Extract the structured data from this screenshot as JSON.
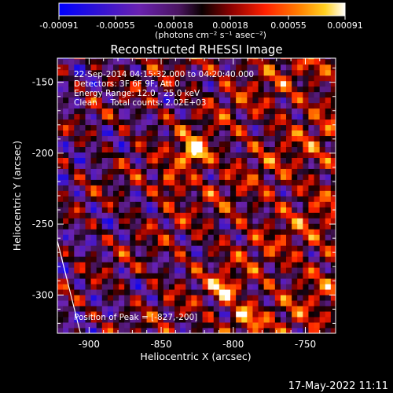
{
  "colorbar": {
    "ticks": [
      "-0.00091",
      "-0.00055",
      "-0.00018",
      "0.00018",
      "0.00055",
      "0.00091"
    ],
    "tick_values": [
      -0.00091,
      -0.00055,
      -0.00018,
      0.00018,
      0.00055,
      0.00091
    ],
    "units_label": "(photons cm⁻² s⁻¹ asec⁻²)"
  },
  "chart_data": {
    "type": "heatmap",
    "title": "Reconstructed RHESSI Image",
    "xlabel": "Heliocentric X (arcsec)",
    "ylabel": "Heliocentric Y (arcsec)",
    "xlim": [
      -922,
      -729
    ],
    "ylim": [
      -327,
      -133
    ],
    "xticks": [
      -900,
      -850,
      -800,
      -750
    ],
    "xtick_labels": [
      "-900",
      "-850",
      "-800",
      "-750"
    ],
    "yticks": [
      -150,
      -200,
      -250,
      -300
    ],
    "ytick_labels": [
      "-150",
      "-200",
      "-250",
      "-300"
    ],
    "value_range": [
      -0.00091,
      0.00091
    ],
    "peak": [
      -827,
      -200
    ],
    "secondary_sources": [
      {
        "x": -792,
        "y": -315
      },
      {
        "x": -806,
        "y": -296
      },
      {
        "x": -843,
        "y": -221
      }
    ],
    "limb_line": [
      [
        -922,
        -262
      ],
      [
        -906,
        -327
      ]
    ],
    "annotations": [
      "22-Sep-2014 04:15:32.000 to 04:20:40.000",
      "Detectors: 3F 6F 9F, Att 0",
      "Energy Range: 12.0 - 25.0 keV",
      "Clean     Total counts: 2.02E+03"
    ],
    "peak_label": "Position of Peak = [-827,-200]",
    "grid": false
  },
  "footer": {
    "timestamp": "17-May-2022 11:11"
  }
}
